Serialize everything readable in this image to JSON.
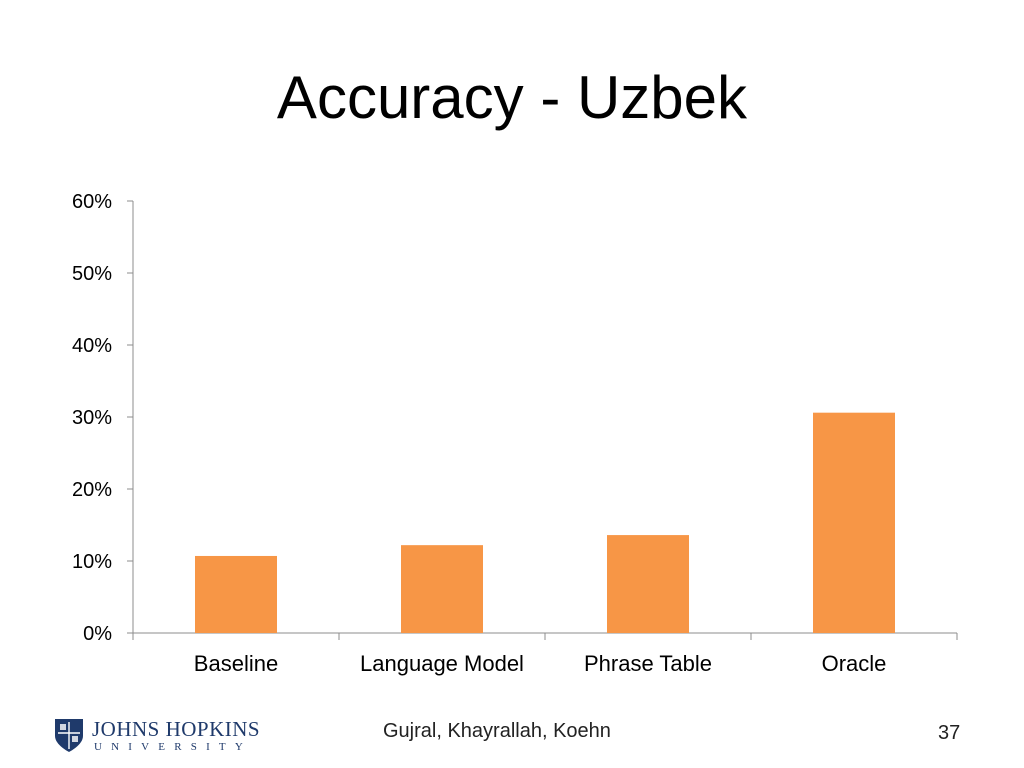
{
  "slide": {
    "title": "Accuracy - Uzbek",
    "authors": "Gujral, Khayrallah, Koehn",
    "page_number": "37"
  },
  "logo": {
    "name": "JOHNS HOPKINS",
    "sub": "UNIVERSITY",
    "icon": "jhu-shield-icon"
  },
  "colors": {
    "bar": "#F79646",
    "axis": "#8C8C8C",
    "text": "#000000",
    "brand": "#1F3A6B"
  },
  "chart_data": {
    "type": "bar",
    "title": "",
    "xlabel": "",
    "ylabel": "",
    "categories": [
      "Baseline",
      "Language Model",
      "Phrase Table",
      "Oracle"
    ],
    "values": [
      10.7,
      12.2,
      13.6,
      30.6
    ],
    "ylim": [
      0,
      60
    ],
    "yticks": [
      0,
      10,
      20,
      30,
      40,
      50,
      60
    ],
    "ytick_labels": [
      "0%",
      "10%",
      "20%",
      "30%",
      "40%",
      "50%",
      "60%"
    ],
    "grid": false,
    "legend": "none"
  }
}
